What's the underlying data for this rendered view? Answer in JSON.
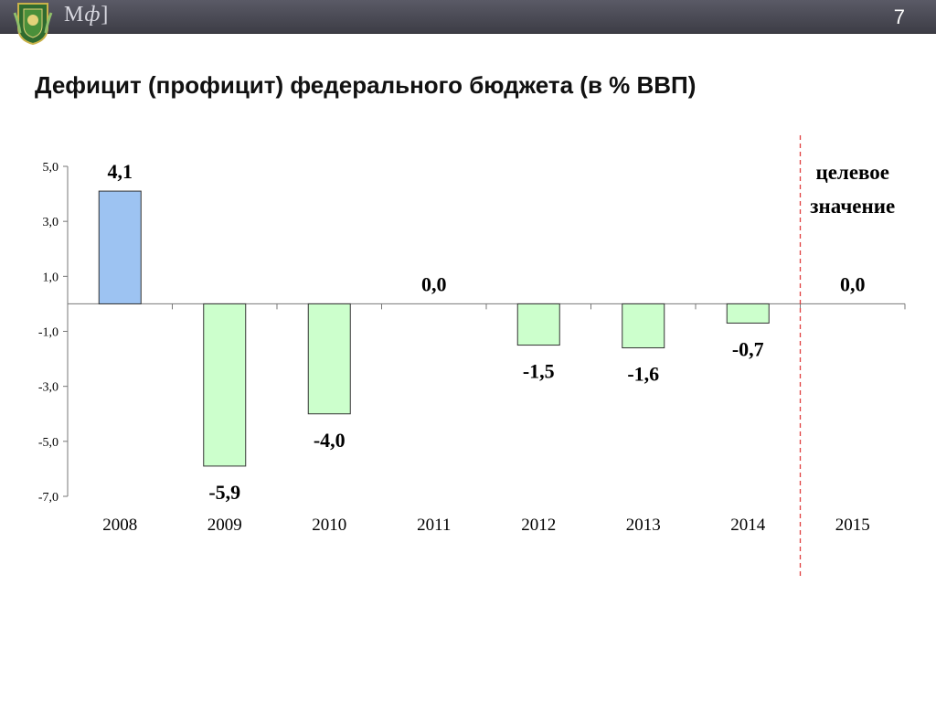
{
  "header": {
    "brand_letter": "М",
    "brand_italic": "ф",
    "brand_tail": "]",
    "slide_number": "7"
  },
  "colors": {
    "positive_bar": "#9DC3F2",
    "negative_bar": "#CCFFCC",
    "target_line": "#E04040",
    "topbar": "#4a4a54"
  },
  "chart_data": {
    "type": "bar",
    "title": "Дефицит (профицит) федерального бюджета (в % ВВП)",
    "categories": [
      "2008",
      "2009",
      "2010",
      "2011",
      "2012",
      "2013",
      "2014",
      "2015"
    ],
    "values": [
      4.1,
      -5.9,
      -4.0,
      0.0,
      -1.5,
      -1.6,
      -0.7,
      0.0
    ],
    "data_labels": [
      "4,1",
      "-5,9",
      "-4,0",
      "0,0",
      "-1,5",
      "-1,6",
      "-0,7",
      "0,0"
    ],
    "yticks": [
      5,
      3,
      1,
      -1,
      -3,
      -5,
      -7
    ],
    "ytick_labels": [
      "5,0",
      "3,0",
      "1,0",
      "-1,0",
      "-3,0",
      "-5,0",
      "-7,0"
    ],
    "ylim": [
      -7,
      5
    ],
    "grid": false,
    "target_annotation": [
      "целевое",
      "значение"
    ]
  }
}
